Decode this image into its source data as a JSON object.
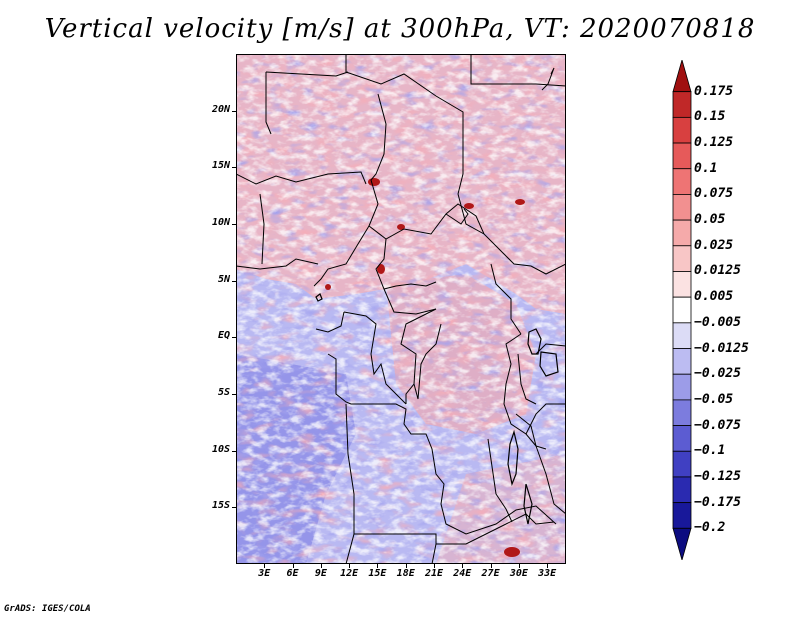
{
  "title": "Vertical velocity [m/s] at 300hPa, VT: 2020070818",
  "credit": "GrADS: IGES/COLA",
  "map": {
    "variable": "Vertical velocity",
    "units": "m/s",
    "level": "300hPa",
    "valid_time": "2020070818",
    "lat_labels": [
      "20N",
      "15N",
      "10N",
      "5N",
      "EQ",
      "5S",
      "10S",
      "15S"
    ],
    "lon_labels": [
      "3E",
      "6E",
      "9E",
      "12E",
      "15E",
      "18E",
      "21E",
      "24E",
      "27E",
      "30E",
      "33E"
    ],
    "lat_values": [
      20,
      15,
      10,
      5,
      0,
      -5,
      -10,
      -15
    ],
    "lon_values": [
      3,
      6,
      9,
      12,
      15,
      18,
      21,
      24,
      27,
      30,
      33
    ],
    "lat_range": [
      -20,
      25
    ],
    "lon_range": [
      0,
      35
    ]
  },
  "colorbar": {
    "labels": [
      "0.175",
      "0.15",
      "0.125",
      "0.1",
      "0.075",
      "0.05",
      "0.025",
      "0.0125",
      "0.005",
      "−0.005",
      "−0.0125",
      "−0.025",
      "−0.05",
      "−0.075",
      "−0.1",
      "−0.125",
      "−0.175",
      "−0.2"
    ],
    "colors": [
      "#a01010",
      "#c02828",
      "#d84040",
      "#e65a5a",
      "#ee7474",
      "#f29090",
      "#f5aaaa",
      "#f8c6c6",
      "#fbe2e2",
      "#ffffff",
      "#dcdcf6",
      "#bcbcf2",
      "#9c9ce8",
      "#7c7cde",
      "#5c5cd2",
      "#4040c2",
      "#2a2ab0",
      "#18189a",
      "#0c0c80"
    ]
  },
  "palette": {
    "ocean_base": "#9a9af0",
    "land_base": "#f0b8c0",
    "border": "#000000"
  }
}
